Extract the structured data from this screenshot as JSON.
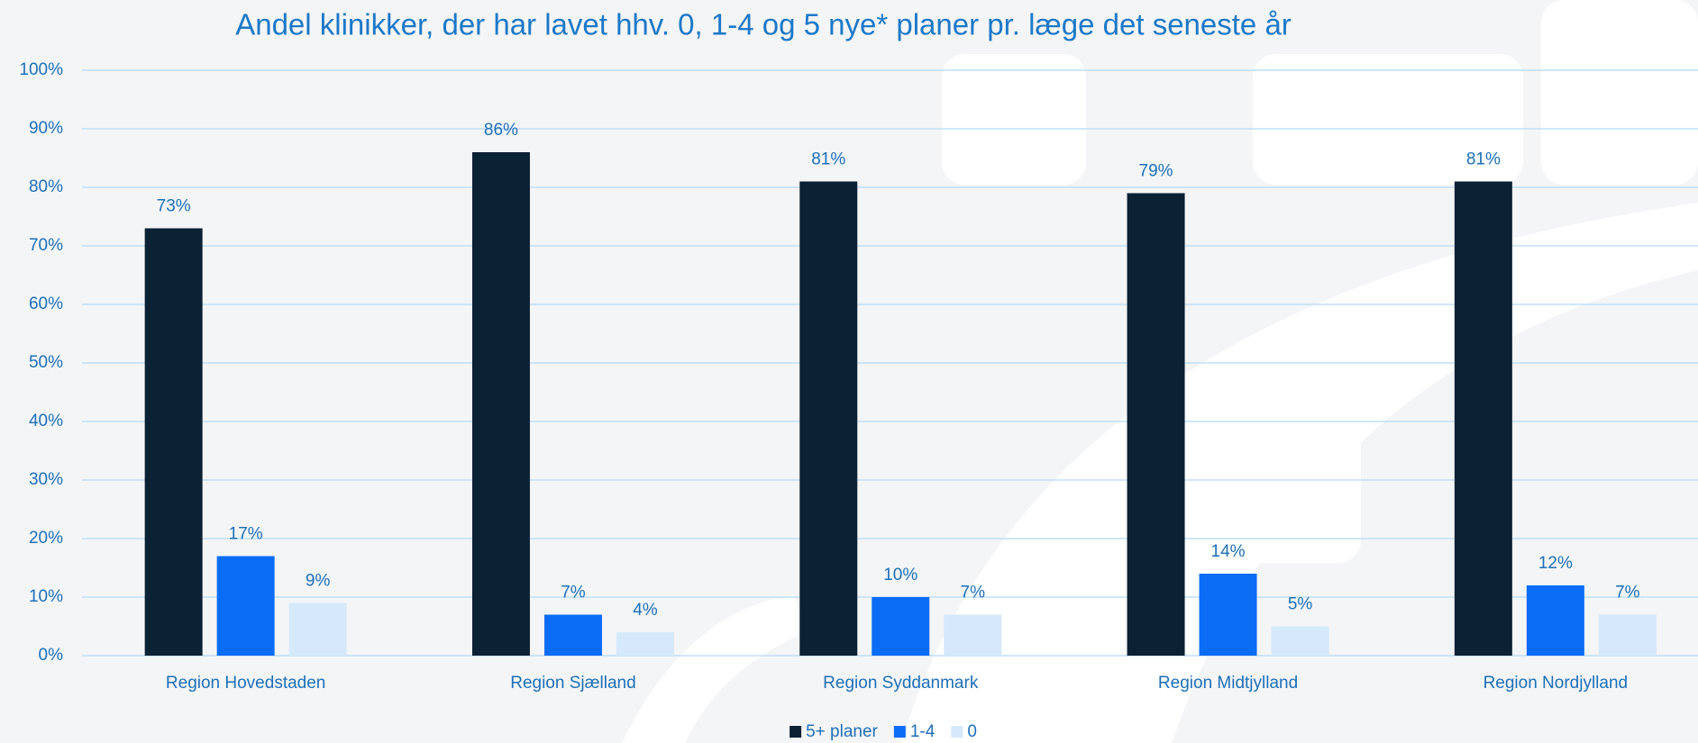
{
  "chart_data": {
    "type": "bar",
    "title": "Andel klinikker, der har lavet hhv. 0, 1-4 og 5 nye* planer pr. læge det seneste år",
    "categories": [
      "Region Hovedstaden",
      "Region Sjælland",
      "Region Syddanmark",
      "Region Midtjylland",
      "Region Nordjylland"
    ],
    "series": [
      {
        "name": "5+ planer",
        "color": "#0b2134",
        "values": [
          73,
          86,
          81,
          79,
          81
        ],
        "value_labels": [
          "73%",
          "86%",
          "81%",
          "79%",
          "81%"
        ]
      },
      {
        "name": "1-4",
        "color": "#0b6cf5",
        "values": [
          17,
          7,
          10,
          14,
          12
        ],
        "value_labels": [
          "17%",
          "7%",
          "10%",
          "14%",
          "12%"
        ]
      },
      {
        "name": "0",
        "color": "#d5e9fa",
        "values": [
          9,
          4,
          7,
          5,
          7
        ],
        "value_labels": [
          "9%",
          "4%",
          "7%",
          "5%",
          "7%"
        ]
      }
    ],
    "ylim": [
      0,
      100
    ],
    "yticks": [
      {
        "value": 0,
        "label": "0%"
      },
      {
        "value": 10,
        "label": "10%"
      },
      {
        "value": 20,
        "label": "20%"
      },
      {
        "value": 30,
        "label": "30%"
      },
      {
        "value": 40,
        "label": "40%"
      },
      {
        "value": 50,
        "label": "50%"
      },
      {
        "value": 60,
        "label": "60%"
      },
      {
        "value": 70,
        "label": "70%"
      },
      {
        "value": 80,
        "label": "80%"
      },
      {
        "value": 90,
        "label": "90%"
      },
      {
        "value": 100,
        "label": "100%"
      }
    ],
    "grid": true,
    "legend": "bottom"
  }
}
